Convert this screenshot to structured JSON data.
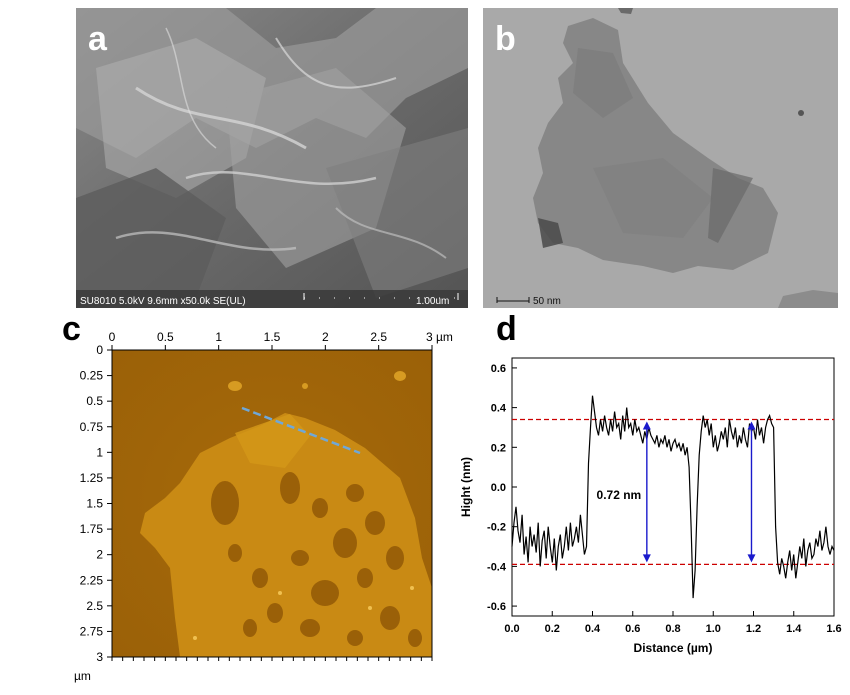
{
  "panels": {
    "a": {
      "label": "a",
      "info_bar": "SU8010 5.0kV 9.6mm x50.0k SE(UL)",
      "scale_label": "1.00um"
    },
    "b": {
      "label": "b",
      "scale_label": "50 nm"
    },
    "c": {
      "label": "c",
      "x_ticks": [
        "0",
        "0.5",
        "1",
        "1.5",
        "2",
        "2.5",
        "3 µm"
      ],
      "y_ticks": [
        "0",
        "0.25",
        "0.5",
        "0.75",
        "1",
        "1.25",
        "1.5",
        "1.75",
        "2",
        "2.25",
        "2.5",
        "2.75",
        "3"
      ],
      "unit_label": "µm"
    },
    "d": {
      "label": "d"
    }
  },
  "chart_data": {
    "type": "line",
    "xlabel": "Distance (µm)",
    "ylabel": "Hight (nm)",
    "xlim": [
      0.0,
      1.6
    ],
    "ylim": [
      -0.65,
      0.65
    ],
    "x_ticks": [
      0.0,
      0.2,
      0.4,
      0.6,
      0.8,
      1.0,
      1.2,
      1.4,
      1.6
    ],
    "y_ticks": [
      -0.6,
      -0.4,
      -0.2,
      0.0,
      0.2,
      0.4,
      0.6
    ],
    "x_tick_labels": [
      "0.0",
      "0.2",
      "0.4",
      "0.6",
      "0.8",
      "1.0",
      "1.2",
      "1.4",
      "1.6"
    ],
    "y_tick_labels": [
      "-0.6",
      "-0.4",
      "-0.2",
      "0.0",
      "0.2",
      "0.4",
      "0.6"
    ],
    "reference_lines": [
      0.34,
      -0.39
    ],
    "annotation": "0.72 nm",
    "annotation_arrows_x": [
      0.67,
      1.19
    ],
    "colors": {
      "profile": "#000000",
      "reference": "#cc0000",
      "arrow": "#1a1acc"
    },
    "series": [
      {
        "x": [
          0.0,
          0.01,
          0.02,
          0.03,
          0.04,
          0.05,
          0.06,
          0.07,
          0.08,
          0.09,
          0.1,
          0.11,
          0.12,
          0.13,
          0.14,
          0.15,
          0.16,
          0.17,
          0.18,
          0.19,
          0.2,
          0.21,
          0.22,
          0.23,
          0.24,
          0.25,
          0.26,
          0.27,
          0.28,
          0.29,
          0.3,
          0.31,
          0.32,
          0.33,
          0.34,
          0.35,
          0.36,
          0.37,
          0.38,
          0.39,
          0.4,
          0.41,
          0.42,
          0.43,
          0.44,
          0.45,
          0.46,
          0.47,
          0.48,
          0.49,
          0.5,
          0.51,
          0.52,
          0.53,
          0.54,
          0.55,
          0.56,
          0.57,
          0.58,
          0.59,
          0.6,
          0.61,
          0.62,
          0.63,
          0.64,
          0.65,
          0.66,
          0.67,
          0.68,
          0.69,
          0.7,
          0.71,
          0.72,
          0.73,
          0.74,
          0.75,
          0.76,
          0.77,
          0.78,
          0.79,
          0.8,
          0.81,
          0.82,
          0.83,
          0.84,
          0.85,
          0.86,
          0.87,
          0.88,
          0.89,
          0.9,
          0.91,
          0.92,
          0.93,
          0.94,
          0.95,
          0.96,
          0.97,
          0.98,
          0.99,
          1.0,
          1.01,
          1.02,
          1.03,
          1.04,
          1.05,
          1.06,
          1.07,
          1.08,
          1.09,
          1.1,
          1.11,
          1.12,
          1.13,
          1.14,
          1.15,
          1.16,
          1.17,
          1.18,
          1.19,
          1.2,
          1.21,
          1.22,
          1.23,
          1.24,
          1.25,
          1.26,
          1.27,
          1.28,
          1.29,
          1.3,
          1.31,
          1.32,
          1.33,
          1.34,
          1.35,
          1.36,
          1.37,
          1.38,
          1.39,
          1.4,
          1.41,
          1.42,
          1.43,
          1.44,
          1.45,
          1.46,
          1.47,
          1.48,
          1.49,
          1.5,
          1.51,
          1.52,
          1.53,
          1.54,
          1.55,
          1.56,
          1.57,
          1.58,
          1.59,
          1.6
        ],
        "y": [
          -0.3,
          -0.18,
          -0.1,
          -0.22,
          -0.28,
          -0.14,
          -0.34,
          -0.25,
          -0.38,
          -0.2,
          -0.3,
          -0.24,
          -0.33,
          -0.18,
          -0.4,
          -0.27,
          -0.22,
          -0.36,
          -0.2,
          -0.3,
          -0.38,
          -0.26,
          -0.42,
          -0.3,
          -0.24,
          -0.36,
          -0.3,
          -0.2,
          -0.32,
          -0.18,
          -0.3,
          -0.26,
          -0.2,
          -0.28,
          -0.14,
          -0.24,
          -0.34,
          -0.3,
          0.12,
          0.3,
          0.46,
          0.38,
          0.3,
          0.26,
          0.34,
          0.28,
          0.36,
          0.3,
          0.26,
          0.34,
          0.28,
          0.38,
          0.3,
          0.32,
          0.24,
          0.36,
          0.28,
          0.4,
          0.3,
          0.32,
          0.26,
          0.34,
          0.28,
          0.3,
          0.26,
          0.22,
          0.28,
          0.24,
          0.3,
          0.26,
          0.24,
          0.22,
          0.26,
          0.2,
          0.24,
          0.22,
          0.26,
          0.2,
          0.24,
          0.18,
          0.22,
          0.24,
          0.2,
          0.22,
          0.18,
          0.22,
          0.16,
          0.2,
          0.1,
          -0.2,
          -0.56,
          -0.42,
          -0.1,
          0.16,
          0.28,
          0.36,
          0.3,
          0.34,
          0.26,
          0.32,
          0.2,
          0.26,
          0.18,
          0.22,
          0.28,
          0.24,
          0.3,
          0.2,
          0.34,
          0.28,
          0.24,
          0.3,
          0.2,
          0.26,
          0.22,
          0.3,
          0.24,
          0.2,
          0.32,
          0.28,
          0.3,
          0.24,
          0.34,
          0.26,
          0.3,
          0.22,
          0.3,
          0.34,
          0.36,
          0.32,
          0.3,
          -0.2,
          -0.38,
          -0.44,
          -0.36,
          -0.4,
          -0.46,
          -0.38,
          -0.32,
          -0.42,
          -0.34,
          -0.46,
          -0.38,
          -0.3,
          -0.36,
          -0.26,
          -0.4,
          -0.32,
          -0.28,
          -0.36,
          -0.34,
          -0.26,
          -0.3,
          -0.22,
          -0.32,
          -0.28,
          -0.2,
          -0.3,
          -0.34,
          -0.3,
          -0.32
        ]
      }
    ]
  }
}
